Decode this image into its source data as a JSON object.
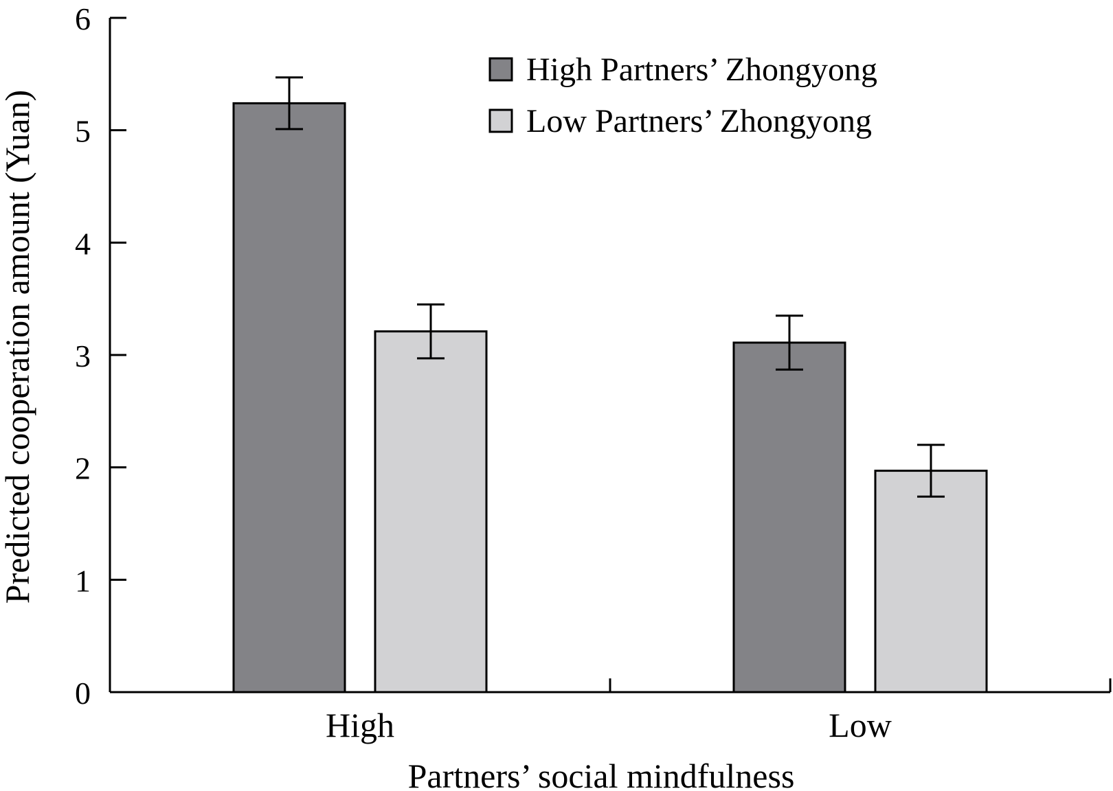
{
  "chart_data": {
    "type": "bar",
    "title": "",
    "xlabel": "Partners’ social mindfulness",
    "ylabel": "Predicted cooperation amount (Yuan)",
    "ylim": [
      0,
      6
    ],
    "yticks": [
      "0",
      "1",
      "2",
      "3",
      "4",
      "5",
      "6"
    ],
    "categories": [
      "High",
      "Low"
    ],
    "series": [
      {
        "name": "High Partners’ Zhongyong",
        "color": "#838387",
        "values": [
          5.24,
          3.11
        ],
        "error": [
          0.23,
          0.24
        ]
      },
      {
        "name": "Low Partners’ Zhongyong",
        "color": "#d2d2d4",
        "values": [
          3.21,
          1.97
        ],
        "error": [
          0.24,
          0.23
        ]
      }
    ],
    "legend_position": "top-right",
    "grid": false
  }
}
